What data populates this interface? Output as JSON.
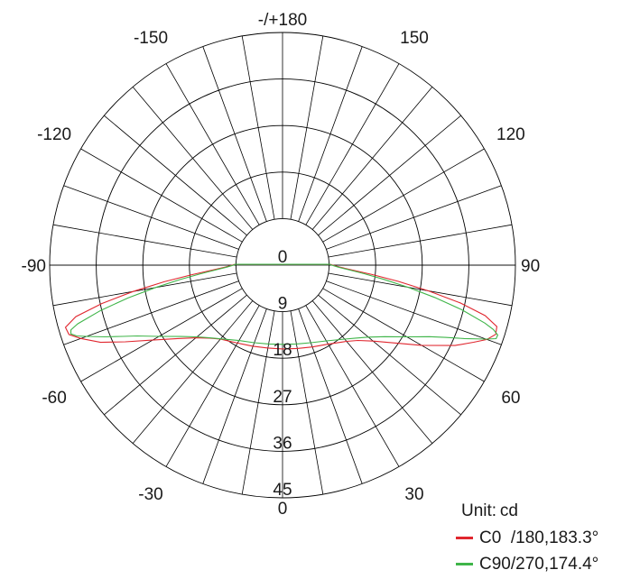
{
  "chart_data": {
    "type": "polar",
    "unit_label": "Unit:",
    "unit": "cd",
    "angle_ticks": [
      {
        "angle": 180,
        "label": "-/+180"
      },
      {
        "angle": 150,
        "label": "150"
      },
      {
        "angle": -150,
        "label": "-150"
      },
      {
        "angle": 120,
        "label": "120"
      },
      {
        "angle": -120,
        "label": "-120"
      },
      {
        "angle": 90,
        "label": "90"
      },
      {
        "angle": -90,
        "label": "-90"
      },
      {
        "angle": 60,
        "label": "60"
      },
      {
        "angle": -60,
        "label": "-60"
      },
      {
        "angle": 30,
        "label": "30"
      },
      {
        "angle": -30,
        "label": "-30"
      },
      {
        "angle": 0,
        "label": "0"
      }
    ],
    "radial_ticks": [
      0,
      9,
      18,
      27,
      36,
      45
    ],
    "rmax": 45,
    "series": [
      {
        "name": "C0  /180,183.3°",
        "color": "#e0262e",
        "points": [
          [
            0,
            9.0
          ],
          [
            10,
            9.2
          ],
          [
            20,
            9.8
          ],
          [
            30,
            10.8
          ],
          [
            40,
            12.8
          ],
          [
            45,
            14.5
          ],
          [
            50,
            17.3
          ],
          [
            55,
            21.5
          ],
          [
            60,
            27.5
          ],
          [
            65,
            34.7
          ],
          [
            68,
            38.5
          ],
          [
            70,
            41.3
          ],
          [
            72,
            42.9
          ],
          [
            74,
            42.6
          ],
          [
            76,
            39.2
          ],
          [
            78,
            32.6
          ],
          [
            80,
            24.6
          ],
          [
            82,
            17.0
          ],
          [
            84,
            10.5
          ],
          [
            86,
            5.6
          ],
          [
            88,
            2.6
          ],
          [
            90,
            0.9
          ],
          [
            91,
            0.3
          ],
          [
            -91,
            0.3
          ],
          [
            -90,
            0.9
          ],
          [
            -88,
            2.6
          ],
          [
            -86,
            5.8
          ],
          [
            -84,
            10.8
          ],
          [
            -82,
            17.6
          ],
          [
            -80,
            25.4
          ],
          [
            -78,
            33.4
          ],
          [
            -76,
            40.2
          ],
          [
            -74,
            43.3
          ],
          [
            -72,
            43.0
          ],
          [
            -70,
            40.6
          ],
          [
            -67,
            36.5
          ],
          [
            -64,
            31.0
          ],
          [
            -60,
            25.0
          ],
          [
            -55,
            19.7
          ],
          [
            -50,
            16.1
          ],
          [
            -45,
            13.7
          ],
          [
            -40,
            12.1
          ],
          [
            -30,
            10.5
          ],
          [
            -20,
            9.6
          ],
          [
            -10,
            9.1
          ],
          [
            0,
            9.0
          ]
        ]
      },
      {
        "name": "C90/270,174.4°",
        "color": "#3fb549",
        "points": [
          [
            0,
            7.9
          ],
          [
            10,
            8.1
          ],
          [
            20,
            8.7
          ],
          [
            30,
            9.9
          ],
          [
            40,
            12.1
          ],
          [
            45,
            13.7
          ],
          [
            50,
            15.8
          ],
          [
            55,
            18.9
          ],
          [
            60,
            23.4
          ],
          [
            64,
            28.2
          ],
          [
            66,
            31.7
          ],
          [
            68,
            36.1
          ],
          [
            70,
            41.0
          ],
          [
            71,
            43.3
          ],
          [
            72,
            43.4
          ],
          [
            73,
            42.0
          ],
          [
            74,
            39.6
          ],
          [
            76,
            33.4
          ],
          [
            78,
            26.3
          ],
          [
            80,
            19.5
          ],
          [
            82,
            13.5
          ],
          [
            84,
            8.6
          ],
          [
            86,
            4.8
          ],
          [
            88,
            2.2
          ],
          [
            90,
            0.6
          ],
          [
            91,
            0.2
          ],
          [
            -91,
            0.2
          ],
          [
            -90,
            0.6
          ],
          [
            -88,
            2.2
          ],
          [
            -86,
            4.8
          ],
          [
            -84,
            8.6
          ],
          [
            -82,
            13.7
          ],
          [
            -80,
            19.9
          ],
          [
            -78,
            26.9
          ],
          [
            -76,
            34.0
          ],
          [
            -74,
            40.2
          ],
          [
            -73,
            42.2
          ],
          [
            -72,
            42.5
          ],
          [
            -71,
            41.3
          ],
          [
            -70,
            39.1
          ],
          [
            -68,
            35.0
          ],
          [
            -66,
            31.1
          ],
          [
            -64,
            27.8
          ],
          [
            -60,
            23.2
          ],
          [
            -55,
            18.8
          ],
          [
            -50,
            15.7
          ],
          [
            -45,
            13.6
          ],
          [
            -40,
            12.0
          ],
          [
            -30,
            9.8
          ],
          [
            -20,
            8.7
          ],
          [
            -10,
            8.1
          ],
          [
            0,
            7.9
          ]
        ]
      }
    ]
  }
}
